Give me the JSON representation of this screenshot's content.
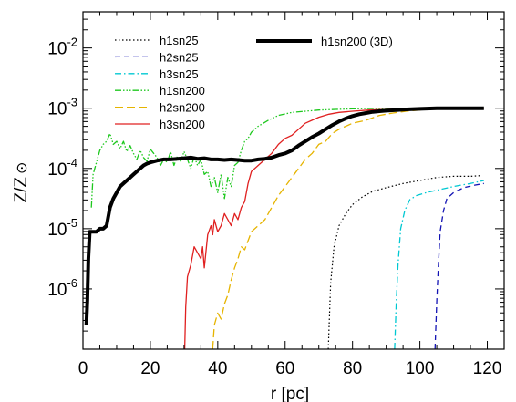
{
  "chart_data": {
    "type": "line",
    "xlabel": "r [pc]",
    "ylabel": "Z/Z",
    "ylabel_symbol": "⊙",
    "xlim": [
      0,
      125
    ],
    "ylim_log10": [
      -7,
      -1.4
    ],
    "y_scale": "log",
    "x_ticks": [
      0,
      20,
      40,
      60,
      80,
      100,
      120
    ],
    "x_tick_labels": [
      "0",
      "20",
      "40",
      "60",
      "80",
      "100",
      "120"
    ],
    "y_ticks_log10": [
      -6,
      -5,
      -4,
      -3,
      -2
    ],
    "y_tick_bases": [
      "10",
      "10",
      "10",
      "10",
      "10"
    ],
    "y_tick_exps": [
      "-6",
      "-5",
      "-4",
      "-3",
      "-2"
    ],
    "grid": false,
    "legend_left": [
      "h1sn25",
      "h2sn25",
      "h3sn25",
      "h1sn200",
      "h2sn200",
      "h3sn200"
    ],
    "legend_right": [
      "h1sn200 (3D)"
    ],
    "series": [
      {
        "name": "h1sn25",
        "color": "#000000",
        "dash": "1.5,2.5",
        "width": 1.2,
        "points": [
          [
            72.8,
            -7
          ],
          [
            73.5,
            -5.9
          ],
          [
            74.5,
            -5.3
          ],
          [
            76,
            -4.95
          ],
          [
            78,
            -4.75
          ],
          [
            80,
            -4.6
          ],
          [
            83,
            -4.47
          ],
          [
            86,
            -4.38
          ],
          [
            90,
            -4.32
          ],
          [
            95,
            -4.25
          ],
          [
            100,
            -4.2
          ],
          [
            105,
            -4.15
          ],
          [
            110,
            -4.13
          ],
          [
            115,
            -4.13
          ],
          [
            118,
            -4.12
          ]
        ]
      },
      {
        "name": "h2sn25",
        "color": "#1414b4",
        "dash": "6,4",
        "width": 1.3,
        "points": [
          [
            104.5,
            -7
          ],
          [
            105,
            -6.2
          ],
          [
            105.5,
            -5.6
          ],
          [
            106,
            -5.05
          ],
          [
            107,
            -4.7
          ],
          [
            108,
            -4.5
          ],
          [
            110,
            -4.4
          ],
          [
            113,
            -4.32
          ],
          [
            116,
            -4.28
          ],
          [
            119,
            -4.25
          ]
        ]
      },
      {
        "name": "h3sn25",
        "color": "#00c8d2",
        "dash": "7,3,1.5,3",
        "width": 1.3,
        "points": [
          [
            92.5,
            -7
          ],
          [
            93,
            -6.2
          ],
          [
            93.5,
            -5.6
          ],
          [
            94.3,
            -5.0
          ],
          [
            95.5,
            -4.7
          ],
          [
            97,
            -4.52
          ],
          [
            99,
            -4.45
          ],
          [
            102,
            -4.4
          ],
          [
            106,
            -4.35
          ],
          [
            110,
            -4.3
          ],
          [
            115,
            -4.25
          ],
          [
            119,
            -4.2
          ]
        ]
      },
      {
        "name": "h1sn200",
        "color": "#1ec81e",
        "dash": "7,2,1.5,2,1.5,2,1.5,2",
        "width": 1.3,
        "points": [
          [
            2.5,
            -4.65
          ],
          [
            3,
            -4.1
          ],
          [
            4,
            -3.9
          ],
          [
            5,
            -3.7
          ],
          [
            6,
            -3.6
          ],
          [
            7,
            -3.55
          ],
          [
            8,
            -3.42
          ],
          [
            9,
            -3.6
          ],
          [
            10,
            -3.55
          ],
          [
            11,
            -3.67
          ],
          [
            12,
            -3.55
          ],
          [
            13,
            -3.72
          ],
          [
            14,
            -3.62
          ],
          [
            15,
            -3.75
          ],
          [
            16,
            -3.85
          ],
          [
            17,
            -3.7
          ],
          [
            18,
            -3.82
          ],
          [
            19,
            -3.88
          ],
          [
            20,
            -3.68
          ],
          [
            21,
            -3.75
          ],
          [
            22,
            -3.82
          ],
          [
            23,
            -3.95
          ],
          [
            24,
            -3.85
          ],
          [
            25,
            -3.9
          ],
          [
            26,
            -3.72
          ],
          [
            27,
            -3.95
          ],
          [
            28,
            -3.8
          ],
          [
            29,
            -3.88
          ],
          [
            30,
            -3.72
          ],
          [
            31,
            -3.85
          ],
          [
            32,
            -4.0
          ],
          [
            33,
            -3.8
          ],
          [
            34,
            -3.95
          ],
          [
            35,
            -3.85
          ],
          [
            36,
            -4.1
          ],
          [
            37,
            -4.05
          ],
          [
            38,
            -4.3
          ],
          [
            39,
            -4.15
          ],
          [
            40,
            -4.4
          ],
          [
            41,
            -4.1
          ],
          [
            42,
            -4.5
          ],
          [
            43,
            -4.15
          ],
          [
            44,
            -4.3
          ],
          [
            45,
            -3.95
          ],
          [
            46,
            -3.9
          ],
          [
            47,
            -3.7
          ],
          [
            48,
            -3.55
          ],
          [
            49,
            -3.5
          ],
          [
            50,
            -3.4
          ],
          [
            52,
            -3.3
          ],
          [
            55,
            -3.2
          ],
          [
            58,
            -3.12
          ],
          [
            62,
            -3.07
          ],
          [
            66,
            -3.05
          ],
          [
            70,
            -3.03
          ],
          [
            75,
            -3.02
          ],
          [
            80,
            -3.01
          ],
          [
            90,
            -3.0
          ],
          [
            100,
            -3.0
          ],
          [
            110,
            -3.0
          ],
          [
            119,
            -3.0
          ]
        ]
      },
      {
        "name": "h2sn200",
        "color": "#e6b400",
        "dash": "9,4",
        "width": 1.3,
        "points": [
          [
            38.5,
            -7
          ],
          [
            39,
            -6.6
          ],
          [
            40,
            -6.4
          ],
          [
            41,
            -6.5
          ],
          [
            42,
            -6.25
          ],
          [
            43,
            -6.1
          ],
          [
            44,
            -5.85
          ],
          [
            45,
            -5.65
          ],
          [
            46,
            -5.5
          ],
          [
            47,
            -5.3
          ],
          [
            48,
            -5.35
          ],
          [
            50,
            -5.05
          ],
          [
            52,
            -4.95
          ],
          [
            54,
            -4.85
          ],
          [
            56,
            -4.65
          ],
          [
            58,
            -4.45
          ],
          [
            60,
            -4.3
          ],
          [
            62,
            -4.15
          ],
          [
            64,
            -4.0
          ],
          [
            66,
            -3.85
          ],
          [
            68,
            -3.75
          ],
          [
            70,
            -3.6
          ],
          [
            72,
            -3.55
          ],
          [
            74,
            -3.42
          ],
          [
            76,
            -3.35
          ],
          [
            78,
            -3.3
          ],
          [
            80,
            -3.25
          ],
          [
            84,
            -3.2
          ],
          [
            88,
            -3.12
          ],
          [
            92,
            -3.08
          ],
          [
            96,
            -3.05
          ],
          [
            100,
            -3.03
          ],
          [
            105,
            -3.01
          ],
          [
            110,
            -3.0
          ],
          [
            119,
            -3.0
          ]
        ]
      },
      {
        "name": "h3sn200",
        "color": "#e02020",
        "dash": "",
        "width": 1.3,
        "points": [
          [
            30.2,
            -7
          ],
          [
            30.5,
            -6.3
          ],
          [
            31,
            -5.8
          ],
          [
            32,
            -5.6
          ],
          [
            33,
            -5.3
          ],
          [
            34,
            -5.4
          ],
          [
            35,
            -5.5
          ],
          [
            35.5,
            -5.3
          ],
          [
            36,
            -5.65
          ],
          [
            37,
            -5.1
          ],
          [
            38,
            -4.95
          ],
          [
            38.5,
            -5.1
          ],
          [
            39,
            -4.85
          ],
          [
            40,
            -5.05
          ],
          [
            41,
            -4.95
          ],
          [
            42,
            -4.75
          ],
          [
            43,
            -4.85
          ],
          [
            44,
            -4.95
          ],
          [
            45,
            -4.75
          ],
          [
            46,
            -4.85
          ],
          [
            47,
            -4.65
          ],
          [
            48,
            -4.55
          ],
          [
            49,
            -4.25
          ],
          [
            50,
            -4.05
          ],
          [
            52,
            -3.95
          ],
          [
            54,
            -3.85
          ],
          [
            56,
            -3.75
          ],
          [
            58,
            -3.6
          ],
          [
            60,
            -3.5
          ],
          [
            62,
            -3.45
          ],
          [
            64,
            -3.35
          ],
          [
            66,
            -3.25
          ],
          [
            68,
            -3.2
          ],
          [
            70,
            -3.15
          ],
          [
            73,
            -3.1
          ],
          [
            76,
            -3.07
          ],
          [
            80,
            -3.05
          ],
          [
            85,
            -3.03
          ],
          [
            90,
            -3.02
          ],
          [
            95,
            -3.01
          ],
          [
            100,
            -3.0
          ],
          [
            110,
            -3.0
          ],
          [
            119,
            -3.0
          ]
        ]
      },
      {
        "name": "h1sn200 (3D)",
        "color": "#000000",
        "dash": "",
        "width": 4,
        "points": [
          [
            1,
            -6.6
          ],
          [
            1.3,
            -6.2
          ],
          [
            1.6,
            -5.5
          ],
          [
            2,
            -5.05
          ],
          [
            3,
            -5.05
          ],
          [
            4,
            -5.05
          ],
          [
            5,
            -5.0
          ],
          [
            6,
            -5.0
          ],
          [
            7,
            -4.95
          ],
          [
            8,
            -4.65
          ],
          [
            9,
            -4.5
          ],
          [
            10,
            -4.4
          ],
          [
            11,
            -4.3
          ],
          [
            12,
            -4.25
          ],
          [
            13,
            -4.2
          ],
          [
            14,
            -4.15
          ],
          [
            15,
            -4.1
          ],
          [
            16,
            -4.05
          ],
          [
            17,
            -4.0
          ],
          [
            18,
            -3.95
          ],
          [
            19,
            -3.92
          ],
          [
            20,
            -3.9
          ],
          [
            22,
            -3.87
          ],
          [
            24,
            -3.85
          ],
          [
            26,
            -3.85
          ],
          [
            28,
            -3.84
          ],
          [
            30,
            -3.83
          ],
          [
            32,
            -3.82
          ],
          [
            34,
            -3.84
          ],
          [
            36,
            -3.83
          ],
          [
            38,
            -3.85
          ],
          [
            40,
            -3.85
          ],
          [
            42,
            -3.86
          ],
          [
            44,
            -3.85
          ],
          [
            46,
            -3.86
          ],
          [
            48,
            -3.87
          ],
          [
            50,
            -3.87
          ],
          [
            52,
            -3.85
          ],
          [
            54,
            -3.84
          ],
          [
            56,
            -3.82
          ],
          [
            58,
            -3.78
          ],
          [
            60,
            -3.75
          ],
          [
            62,
            -3.7
          ],
          [
            64,
            -3.62
          ],
          [
            66,
            -3.55
          ],
          [
            68,
            -3.48
          ],
          [
            70,
            -3.42
          ],
          [
            72,
            -3.35
          ],
          [
            74,
            -3.28
          ],
          [
            76,
            -3.22
          ],
          [
            78,
            -3.17
          ],
          [
            80,
            -3.13
          ],
          [
            82,
            -3.1
          ],
          [
            84,
            -3.08
          ],
          [
            86,
            -3.06
          ],
          [
            88,
            -3.05
          ],
          [
            90,
            -3.04
          ],
          [
            93,
            -3.03
          ],
          [
            96,
            -3.02
          ],
          [
            100,
            -3.01
          ],
          [
            105,
            -3.0
          ],
          [
            110,
            -3.0
          ],
          [
            115,
            -3.0
          ],
          [
            119,
            -3.0
          ]
        ]
      }
    ]
  }
}
